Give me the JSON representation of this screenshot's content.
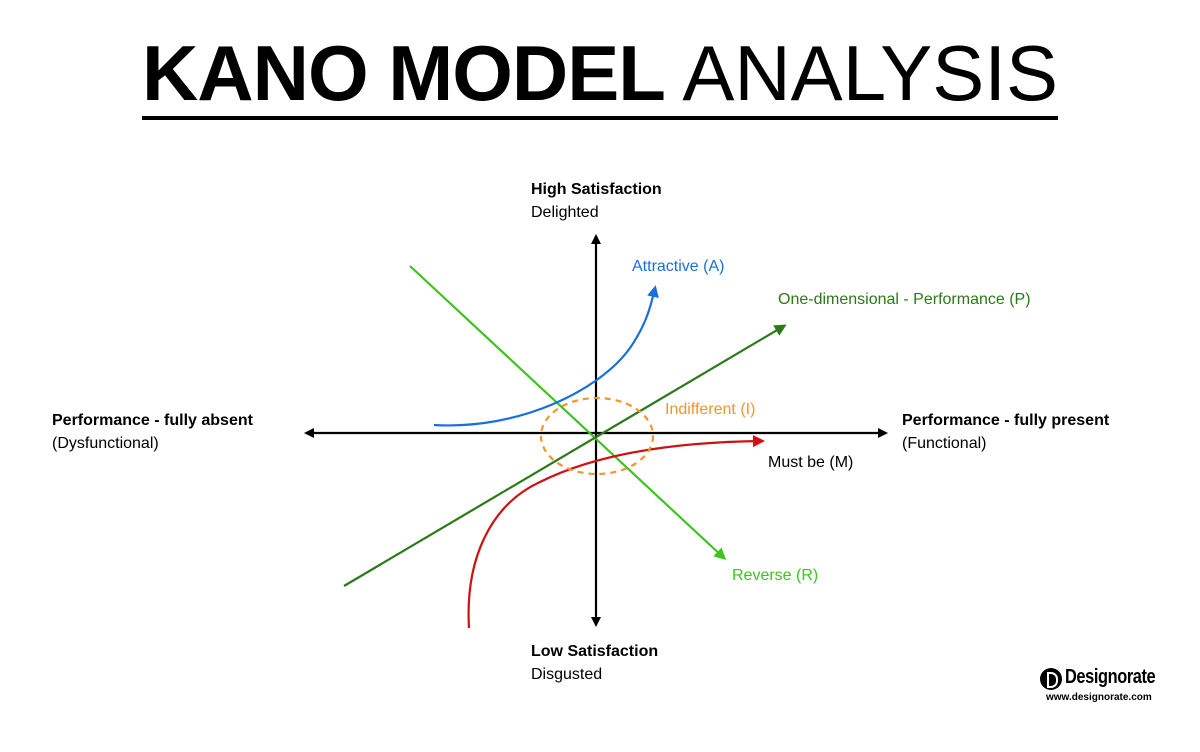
{
  "title": {
    "bold": "KANO MODEL",
    "light": "ANALYSIS"
  },
  "axes": {
    "top": {
      "title": "High Satisfaction",
      "subtitle": "Delighted"
    },
    "bottom": {
      "title": "Low Satisfaction",
      "subtitle": "Disgusted"
    },
    "left": {
      "title": "Performance - fully absent",
      "subtitle": "(Dysfunctional)"
    },
    "right": {
      "title": "Performance - fully present",
      "subtitle": "(Functional)"
    }
  },
  "curves": {
    "attractive": {
      "label": "Attractive (A)",
      "color": "#1a6fdc"
    },
    "one_dimensional": {
      "label": "One-dimensional  - Performance (P)",
      "color": "#2b7a17"
    },
    "indifferent": {
      "label": "Indifferent (I)",
      "color": "#f0962c"
    },
    "must_be": {
      "label": "Must be (M)",
      "color": "#cc1111"
    },
    "reverse": {
      "label": "Reverse (R)",
      "color": "#3ec31f"
    }
  },
  "logo": {
    "name": "Designorate",
    "url": "www.designorate.com"
  }
}
